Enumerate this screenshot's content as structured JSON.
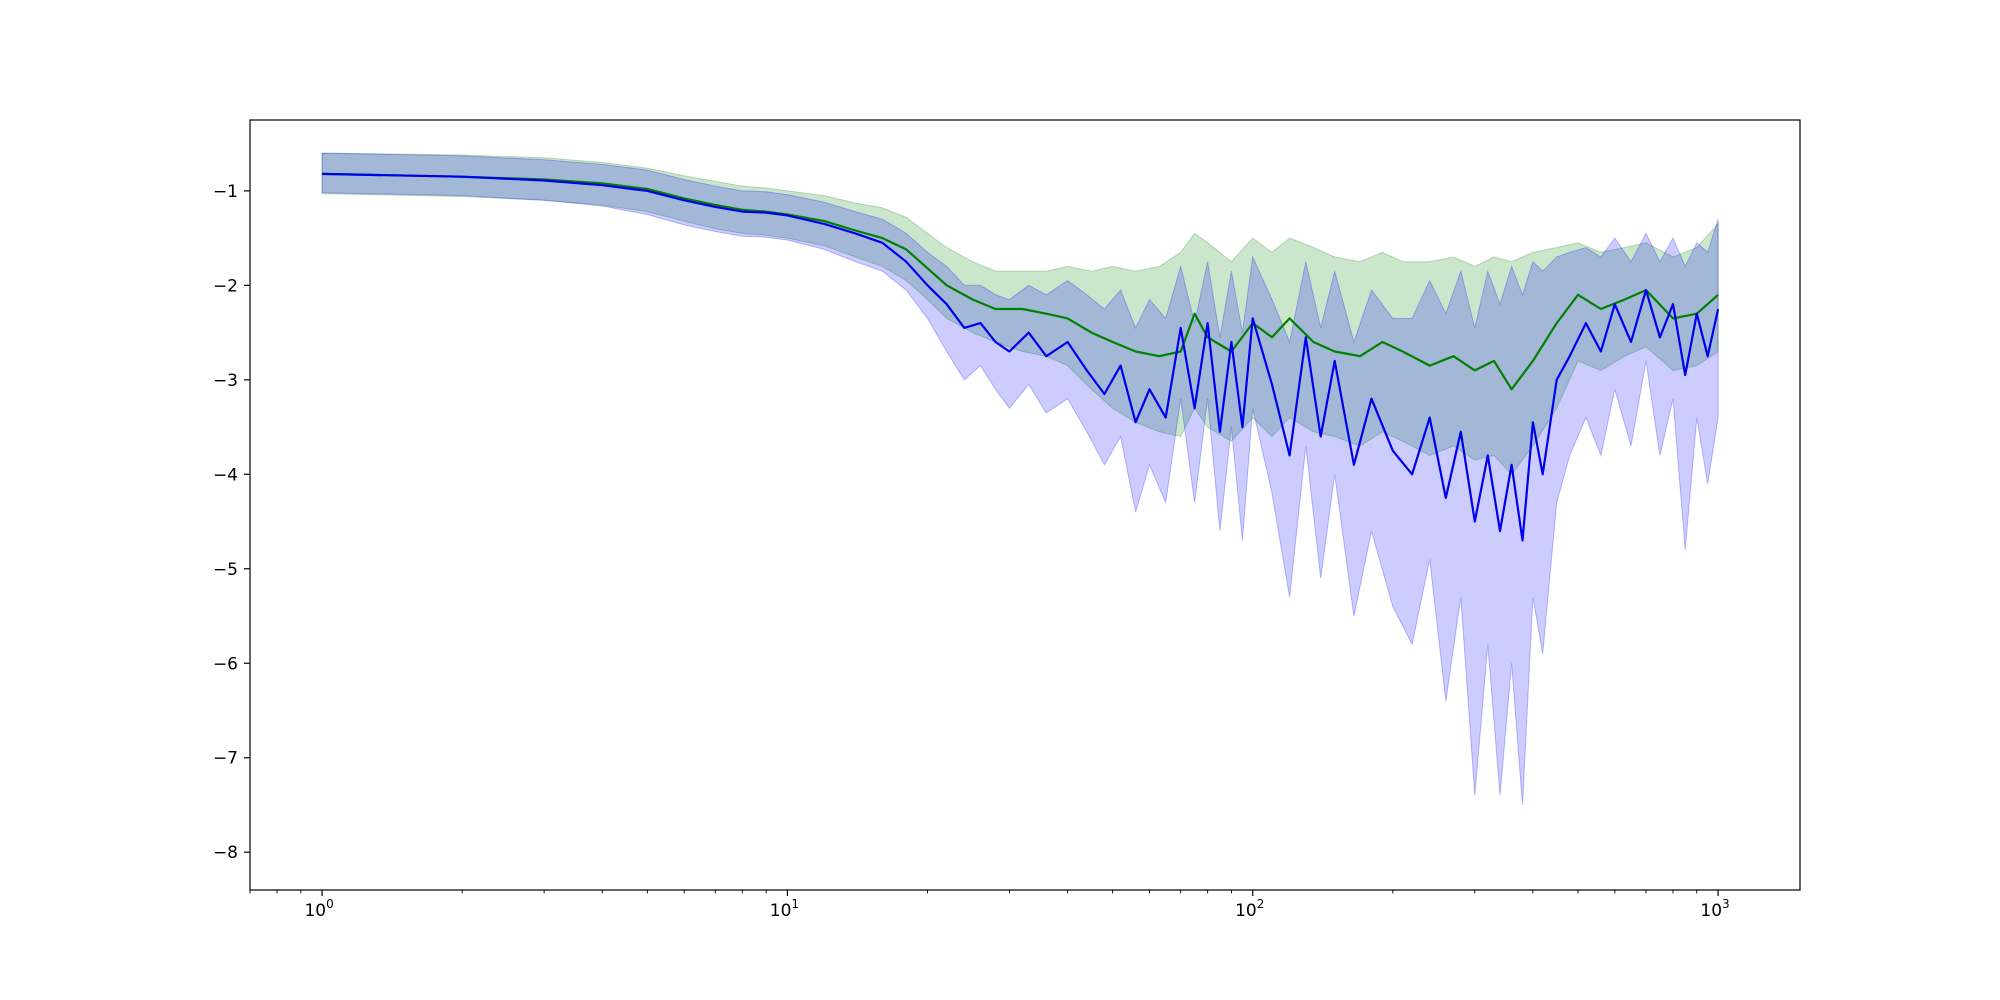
{
  "chart_data": {
    "type": "line",
    "title": "",
    "xlabel": "",
    "ylabel": "",
    "xscale": "log",
    "xlim": [
      0.7,
      1500
    ],
    "ylim": [
      -8.4,
      -0.25
    ],
    "grid": false,
    "legend": "none",
    "x_ticks": [
      {
        "value": 1,
        "base": "10",
        "exp": "0"
      },
      {
        "value": 10,
        "base": "10",
        "exp": "1"
      },
      {
        "value": 100,
        "base": "10",
        "exp": "2"
      },
      {
        "value": 1000,
        "base": "10",
        "exp": "3"
      }
    ],
    "y_ticks": [
      {
        "value": -1,
        "label": "−1"
      },
      {
        "value": -2,
        "label": "−2"
      },
      {
        "value": -3,
        "label": "−3"
      },
      {
        "value": -4,
        "label": "−4"
      },
      {
        "value": -5,
        "label": "−5"
      },
      {
        "value": -6,
        "label": "−6"
      },
      {
        "value": -7,
        "label": "−7"
      },
      {
        "value": -8,
        "label": "−8"
      }
    ],
    "series": [
      {
        "color": "#008000",
        "band_color": "#008000",
        "band_opacity": 0.2,
        "x": [
          1,
          2,
          3,
          4,
          5,
          6,
          7,
          8,
          9,
          10,
          12,
          14,
          16,
          18,
          20,
          22,
          25,
          28,
          32,
          36,
          40,
          45,
          50,
          56,
          63,
          70,
          75,
          80,
          90,
          100,
          110,
          120,
          135,
          150,
          170,
          190,
          210,
          240,
          270,
          300,
          330,
          360,
          400,
          450,
          500,
          560,
          630,
          700,
          800,
          900,
          1000
        ],
        "mean": [
          -0.82,
          -0.85,
          -0.88,
          -0.92,
          -0.98,
          -1.08,
          -1.15,
          -1.2,
          -1.22,
          -1.25,
          -1.32,
          -1.42,
          -1.5,
          -1.62,
          -1.82,
          -2.0,
          -2.15,
          -2.25,
          -2.25,
          -2.3,
          -2.35,
          -2.5,
          -2.6,
          -2.7,
          -2.75,
          -2.7,
          -2.3,
          -2.55,
          -2.7,
          -2.4,
          -2.55,
          -2.35,
          -2.6,
          -2.7,
          -2.75,
          -2.6,
          -2.7,
          -2.85,
          -2.75,
          -2.9,
          -2.8,
          -3.1,
          -2.8,
          -2.4,
          -2.1,
          -2.25,
          -2.15,
          -2.05,
          -2.35,
          -2.3,
          -2.1
        ],
        "upper": [
          -0.6,
          -0.62,
          -0.65,
          -0.7,
          -0.76,
          -0.84,
          -0.9,
          -0.95,
          -0.97,
          -1.0,
          -1.05,
          -1.13,
          -1.18,
          -1.28,
          -1.45,
          -1.6,
          -1.75,
          -1.85,
          -1.85,
          -1.85,
          -1.8,
          -1.85,
          -1.8,
          -1.85,
          -1.8,
          -1.65,
          -1.45,
          -1.55,
          -1.75,
          -1.5,
          -1.65,
          -1.5,
          -1.6,
          -1.7,
          -1.75,
          -1.65,
          -1.75,
          -1.75,
          -1.7,
          -1.8,
          -1.7,
          -1.75,
          -1.65,
          -1.6,
          -1.55,
          -1.65,
          -1.6,
          -1.55,
          -1.7,
          -1.6,
          -1.35
        ],
        "lower": [
          -1.03,
          -1.06,
          -1.1,
          -1.15,
          -1.22,
          -1.32,
          -1.4,
          -1.45,
          -1.47,
          -1.5,
          -1.58,
          -1.7,
          -1.8,
          -1.95,
          -2.15,
          -2.35,
          -2.5,
          -2.6,
          -2.7,
          -2.75,
          -2.85,
          -3.1,
          -3.3,
          -3.45,
          -3.55,
          -3.6,
          -3.3,
          -3.5,
          -3.65,
          -3.4,
          -3.6,
          -3.4,
          -3.55,
          -3.6,
          -3.7,
          -3.55,
          -3.65,
          -3.8,
          -3.7,
          -3.85,
          -3.8,
          -4.0,
          -3.7,
          -3.3,
          -2.8,
          -2.9,
          -2.75,
          -2.65,
          -2.9,
          -2.85,
          -2.7
        ]
      },
      {
        "color": "#0000ee",
        "band_color": "#0000ff",
        "band_opacity": 0.2,
        "x": [
          1,
          2,
          3,
          4,
          5,
          6,
          7,
          8,
          9,
          10,
          12,
          14,
          16,
          18,
          20,
          22,
          24,
          26,
          28,
          30,
          33,
          36,
          40,
          44,
          48,
          52,
          56,
          60,
          65,
          70,
          75,
          80,
          85,
          90,
          95,
          100,
          110,
          120,
          130,
          140,
          150,
          165,
          180,
          200,
          220,
          240,
          260,
          280,
          300,
          320,
          340,
          360,
          380,
          400,
          420,
          450,
          480,
          520,
          560,
          600,
          650,
          700,
          750,
          800,
          850,
          900,
          950,
          1000
        ],
        "mean": [
          -0.82,
          -0.85,
          -0.89,
          -0.94,
          -1.0,
          -1.1,
          -1.17,
          -1.22,
          -1.23,
          -1.26,
          -1.35,
          -1.45,
          -1.55,
          -1.75,
          -2.0,
          -2.2,
          -2.45,
          -2.4,
          -2.6,
          -2.7,
          -2.5,
          -2.75,
          -2.6,
          -2.9,
          -3.15,
          -2.85,
          -3.45,
          -3.1,
          -3.4,
          -2.45,
          -3.3,
          -2.4,
          -3.55,
          -2.6,
          -3.5,
          -2.35,
          -3.05,
          -3.8,
          -2.55,
          -3.6,
          -2.8,
          -3.9,
          -3.2,
          -3.75,
          -4.0,
          -3.4,
          -4.25,
          -3.55,
          -4.5,
          -3.8,
          -4.6,
          -3.9,
          -4.7,
          -3.45,
          -4.0,
          -3.0,
          -2.75,
          -2.4,
          -2.7,
          -2.2,
          -2.6,
          -2.05,
          -2.55,
          -2.2,
          -2.95,
          -2.3,
          -2.75,
          -2.25
        ],
        "upper": [
          -0.6,
          -0.63,
          -0.67,
          -0.72,
          -0.78,
          -0.88,
          -0.95,
          -1.0,
          -1.01,
          -1.04,
          -1.12,
          -1.22,
          -1.3,
          -1.45,
          -1.65,
          -1.8,
          -2.0,
          -2.0,
          -2.1,
          -2.15,
          -2.0,
          -2.1,
          -1.95,
          -2.1,
          -2.25,
          -2.05,
          -2.45,
          -2.15,
          -2.35,
          -1.8,
          -2.4,
          -1.75,
          -2.55,
          -1.85,
          -2.5,
          -1.7,
          -2.15,
          -2.6,
          -1.75,
          -2.45,
          -1.85,
          -2.6,
          -2.05,
          -2.35,
          -2.35,
          -1.95,
          -2.3,
          -1.85,
          -2.45,
          -1.85,
          -2.2,
          -1.8,
          -2.1,
          -1.75,
          -1.85,
          -1.7,
          -1.65,
          -1.6,
          -1.7,
          -1.5,
          -1.75,
          -1.45,
          -1.75,
          -1.5,
          -1.8,
          -1.55,
          -1.65,
          -1.3
        ],
        "lower": [
          -1.02,
          -1.05,
          -1.1,
          -1.16,
          -1.25,
          -1.36,
          -1.43,
          -1.48,
          -1.49,
          -1.52,
          -1.62,
          -1.75,
          -1.85,
          -2.05,
          -2.35,
          -2.7,
          -3.0,
          -2.85,
          -3.1,
          -3.3,
          -3.05,
          -3.35,
          -3.2,
          -3.55,
          -3.9,
          -3.6,
          -4.4,
          -3.9,
          -4.3,
          -3.2,
          -4.3,
          -3.2,
          -4.6,
          -3.5,
          -4.7,
          -3.3,
          -4.2,
          -5.3,
          -3.7,
          -5.1,
          -4.0,
          -5.5,
          -4.6,
          -5.4,
          -5.8,
          -4.9,
          -6.4,
          -5.3,
          -7.4,
          -5.8,
          -7.4,
          -6.0,
          -7.5,
          -5.3,
          -5.9,
          -4.3,
          -3.8,
          -3.4,
          -3.8,
          -3.1,
          -3.7,
          -2.8,
          -3.8,
          -3.2,
          -4.8,
          -3.4,
          -4.1,
          -3.4
        ]
      }
    ]
  }
}
